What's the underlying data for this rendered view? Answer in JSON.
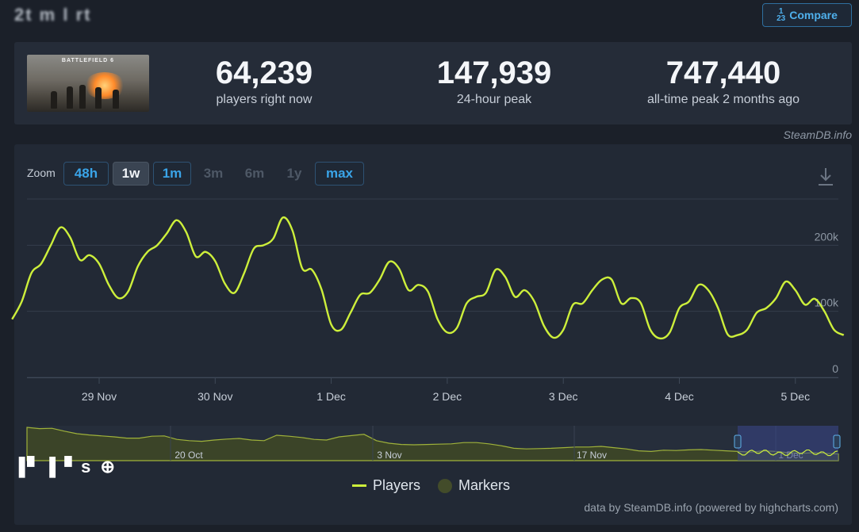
{
  "header": {
    "title": "2t m l rt",
    "compare_label": "Compare",
    "compare_icon_top": "1",
    "compare_icon_bottom": "23"
  },
  "stats": {
    "game_logo_text": "BATTLEFIELD 6",
    "current": {
      "value": "64,239",
      "label": "players right now"
    },
    "peak24": {
      "value": "147,939",
      "label": "24-hour peak"
    },
    "alltime": {
      "value": "747,440",
      "label": "all-time peak 2 months ago"
    }
  },
  "credit_top": "SteamDB.info",
  "zoom": {
    "label": "Zoom",
    "buttons": [
      {
        "label": "48h",
        "state": "enabled"
      },
      {
        "label": "1w",
        "state": "active"
      },
      {
        "label": "1m",
        "state": "enabled"
      },
      {
        "label": "3m",
        "state": "disabled"
      },
      {
        "label": "6m",
        "state": "disabled"
      },
      {
        "label": "1y",
        "state": "disabled"
      },
      {
        "label": "max",
        "state": "enabled"
      }
    ]
  },
  "legend": {
    "players": "Players",
    "markers": "Markers"
  },
  "credit_bottom": "data by SteamDB.info (powered by highcharts.com)",
  "colors": {
    "line": "#cdef3b",
    "grid": "#343d4b",
    "navigator_fill": "#3b4428",
    "navigator_mask": "#39458a",
    "marker": "#434c2a"
  },
  "chart_data": {
    "type": "line",
    "series": [
      {
        "name": "Players",
        "x": [
          "28 Nov 06:00",
          "28 Nov 08:00",
          "28 Nov 10:00",
          "28 Nov 12:00",
          "28 Nov 14:00",
          "28 Nov 16:00",
          "28 Nov 18:00",
          "28 Nov 20:00",
          "28 Nov 22:00",
          "29 Nov 00:00",
          "29 Nov 02:00",
          "29 Nov 04:00",
          "29 Nov 06:00",
          "29 Nov 08:00",
          "29 Nov 10:00",
          "29 Nov 12:00",
          "29 Nov 14:00",
          "29 Nov 16:00",
          "29 Nov 18:00",
          "29 Nov 20:00",
          "29 Nov 22:00",
          "30 Nov 00:00",
          "30 Nov 02:00",
          "30 Nov 04:00",
          "30 Nov 06:00",
          "30 Nov 08:00",
          "30 Nov 10:00",
          "30 Nov 12:00",
          "30 Nov 14:00",
          "30 Nov 16:00",
          "30 Nov 18:00",
          "30 Nov 20:00",
          "30 Nov 22:00",
          "1 Dec 00:00",
          "1 Dec 02:00",
          "1 Dec 04:00",
          "1 Dec 06:00",
          "1 Dec 08:00",
          "1 Dec 10:00",
          "1 Dec 12:00",
          "1 Dec 14:00",
          "1 Dec 16:00",
          "1 Dec 18:00",
          "1 Dec 20:00",
          "1 Dec 22:00",
          "2 Dec 00:00",
          "2 Dec 02:00",
          "2 Dec 04:00",
          "2 Dec 06:00",
          "2 Dec 08:00",
          "2 Dec 10:00",
          "2 Dec 12:00",
          "2 Dec 14:00",
          "2 Dec 16:00",
          "2 Dec 18:00",
          "2 Dec 20:00",
          "2 Dec 22:00",
          "3 Dec 00:00",
          "3 Dec 02:00",
          "3 Dec 04:00",
          "3 Dec 06:00",
          "3 Dec 08:00",
          "3 Dec 10:00",
          "3 Dec 12:00",
          "3 Dec 14:00",
          "3 Dec 16:00",
          "3 Dec 18:00",
          "3 Dec 20:00",
          "3 Dec 22:00",
          "4 Dec 00:00",
          "4 Dec 02:00",
          "4 Dec 04:00",
          "4 Dec 06:00",
          "4 Dec 08:00",
          "4 Dec 10:00",
          "4 Dec 12:00",
          "4 Dec 14:00",
          "4 Dec 16:00",
          "4 Dec 18:00",
          "4 Dec 20:00",
          "4 Dec 22:00",
          "5 Dec 00:00",
          "5 Dec 02:00",
          "5 Dec 04:00",
          "5 Dec 06:00",
          "5 Dec 08:00",
          "5 Dec 10:00"
        ],
        "values": [
          88000,
          115000,
          158000,
          172000,
          200000,
          227000,
          212000,
          178000,
          185000,
          172000,
          140000,
          120000,
          130000,
          168000,
          190000,
          200000,
          218000,
          238000,
          220000,
          183000,
          190000,
          176000,
          142000,
          128000,
          158000,
          195000,
          200000,
          210000,
          242000,
          222000,
          165000,
          163000,
          133000,
          80000,
          72000,
          98000,
          125000,
          128000,
          148000,
          175000,
          165000,
          132000,
          140000,
          130000,
          88000,
          68000,
          75000,
          112000,
          122000,
          128000,
          163000,
          152000,
          122000,
          132000,
          115000,
          78000,
          60000,
          72000,
          110000,
          112000,
          132000,
          148000,
          148000,
          112000,
          120000,
          113000,
          72000,
          59000,
          68000,
          105000,
          115000,
          140000,
          132000,
          105000,
          65000,
          64000,
          72000,
          98000,
          105000,
          120000,
          145000,
          132000,
          110000,
          119000,
          100000,
          72000,
          64000
        ]
      }
    ],
    "y_ticks": [
      "0",
      "100k",
      "200k"
    ],
    "ylim": [
      0,
      270000
    ],
    "x_ticks": [
      "29 Nov",
      "30 Nov",
      "1 Dec",
      "2 Dec",
      "3 Dec",
      "4 Dec",
      "5 Dec"
    ],
    "navigator": {
      "labels": [
        "20 Oct",
        "3 Nov",
        "17 Nov",
        "1 Dec"
      ],
      "values": [
        1.0,
        0.96,
        0.97,
        0.88,
        0.8,
        0.76,
        0.73,
        0.7,
        0.66,
        0.66,
        0.72,
        0.73,
        0.62,
        0.58,
        0.56,
        0.6,
        0.63,
        0.65,
        0.6,
        0.58,
        0.75,
        0.72,
        0.68,
        0.62,
        0.6,
        0.7,
        0.74,
        0.78,
        0.58,
        0.5,
        0.46,
        0.45,
        0.46,
        0.47,
        0.48,
        0.52,
        0.52,
        0.48,
        0.42,
        0.34,
        0.32,
        0.33,
        0.34,
        0.36,
        0.38,
        0.38,
        0.4,
        0.36,
        0.32,
        0.26,
        0.24,
        0.28,
        0.27,
        0.29,
        0.3,
        0.28,
        0.26,
        0.24,
        0.22,
        0.26,
        0.24,
        0.2,
        0.18,
        0.2,
        0.18,
        0.16
      ]
    },
    "grid": true,
    "legend_position": "bottom-center"
  }
}
